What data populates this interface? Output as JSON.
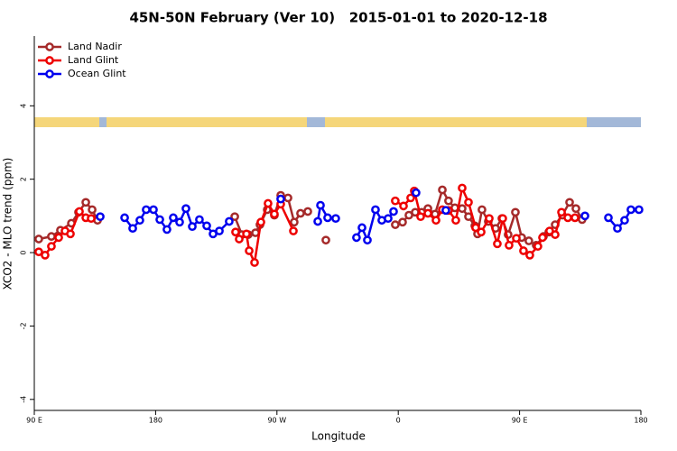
{
  "chart_data": {
    "type": "line",
    "title": "45N-50N February (Ver 10)   2015-01-01 to 2020-12-18",
    "xlabel": "Longitude",
    "ylabel": "XCO2 - MLO trend (ppm)",
    "xlim": [
      90,
      540
    ],
    "xticks": [
      {
        "value": 90,
        "label": "90 E"
      },
      180,
      {
        "value": 270,
        "label": "90 W"
      },
      {
        "value": 360,
        "label": "0"
      },
      {
        "value": 450,
        "label": "90 E"
      },
      {
        "value": 540,
        "label": "180"
      }
    ],
    "ylim": [
      -4.3,
      5.9
    ],
    "yticks": [
      -4,
      -2,
      0,
      2,
      4
    ],
    "legend": "top-left",
    "series": [
      {
        "name": "Land Nadir",
        "color": "#a52a2a",
        "x": [
          93.3,
          102.7,
          109.4,
          117.5,
          122.8,
          128.2,
          132.9,
          136.9,
          null,
          238.7,
          244.0,
          248.7,
          254.1,
          257.4,
          262.8,
          268.1,
          272.8,
          278.2,
          282.8,
          287.5,
          292.9,
          null,
          306.3,
          null,
          357.8,
          363.2,
          367.9,
          372.6,
          377.3,
          382.0,
          387.3,
          392.7,
          397.3,
          402.0,
          407.4,
          412.1,
          416.8,
          418.8,
          422.1,
          426.8,
          432.2,
          436.9,
          441.5,
          446.9,
          451.6,
          456.9,
          462.3,
          467.7,
          471.7,
          476.4,
          481.7,
          487.1,
          491.8,
          496.4
        ],
        "values": [
          0.37,
          0.44,
          0.61,
          0.8,
          1.1,
          1.37,
          1.17,
          0.88,
          null,
          0.98,
          0.49,
          0.49,
          0.54,
          0.76,
          1.17,
          1.02,
          1.56,
          1.49,
          0.83,
          1.07,
          1.12,
          null,
          0.34,
          null,
          0.76,
          0.83,
          1.02,
          1.1,
          1.1,
          1.2,
          1.05,
          1.71,
          1.41,
          1.22,
          1.2,
          0.98,
          0.73,
          0.51,
          1.17,
          0.85,
          0.66,
          0.93,
          0.49,
          1.1,
          0.41,
          0.32,
          0.2,
          0.44,
          0.56,
          0.76,
          1.02,
          1.37,
          1.2,
          0.9
        ]
      },
      {
        "name": "Land Glint",
        "color": "#ee0000",
        "x": [
          93.3,
          98.0,
          102.7,
          108.1,
          112.8,
          116.8,
          123.5,
          128.2,
          132.2,
          null,
          239.3,
          242.0,
          247.4,
          249.4,
          253.4,
          258.1,
          263.4,
          268.1,
          272.8,
          282.2,
          null,
          357.8,
          363.9,
          369.2,
          371.9,
          376.6,
          382.0,
          388.0,
          392.7,
          397.3,
          402.7,
          407.4,
          412.1,
          417.4,
          421.5,
          427.5,
          433.5,
          437.5,
          442.2,
          447.6,
          452.9,
          457.6,
          463.6,
          467.0,
          472.3,
          476.4,
          481.1,
          485.8,
          491.1
        ],
        "values": [
          0.02,
          -0.07,
          0.17,
          0.41,
          0.59,
          0.51,
          1.12,
          0.95,
          0.93,
          null,
          0.56,
          0.37,
          0.51,
          0.05,
          -0.27,
          0.83,
          1.34,
          1.05,
          1.32,
          0.59,
          null,
          1.41,
          1.27,
          1.49,
          1.68,
          0.98,
          1.07,
          0.88,
          1.17,
          1.15,
          0.88,
          1.76,
          1.37,
          0.68,
          0.56,
          0.93,
          0.24,
          0.93,
          0.2,
          0.39,
          0.05,
          -0.07,
          0.17,
          0.41,
          0.59,
          0.49,
          1.1,
          0.95,
          0.95
        ]
      },
      {
        "name": "Ocean Glint",
        "color": "#0000ee",
        "x": [
          138.9,
          null,
          157.0,
          163.0,
          168.3,
          173.0,
          178.4,
          183.1,
          188.4,
          193.1,
          197.8,
          202.5,
          207.2,
          212.5,
          217.9,
          222.6,
          227.3,
          234.6,
          null,
          272.8,
          null,
          300.3,
          302.3,
          307.6,
          313.6,
          null,
          329.0,
          333.1,
          337.1,
          343.1,
          347.8,
          352.5,
          356.5,
          null,
          373.2,
          null,
          395.3,
          null,
          498.5,
          null,
          515.9,
          522.6,
          527.9,
          532.6,
          538.6
        ],
        "values": [
          0.98,
          null,
          0.95,
          0.66,
          0.88,
          1.17,
          1.17,
          0.9,
          0.63,
          0.95,
          0.83,
          1.2,
          0.71,
          0.9,
          0.73,
          0.51,
          0.59,
          0.85,
          null,
          1.46,
          null,
          0.85,
          1.29,
          0.95,
          0.93,
          null,
          0.41,
          0.68,
          0.34,
          1.17,
          0.88,
          0.93,
          1.12,
          null,
          1.63,
          null,
          1.15,
          null,
          1.0,
          null,
          0.95,
          0.66,
          0.88,
          1.17,
          1.17
        ]
      }
    ]
  }
}
